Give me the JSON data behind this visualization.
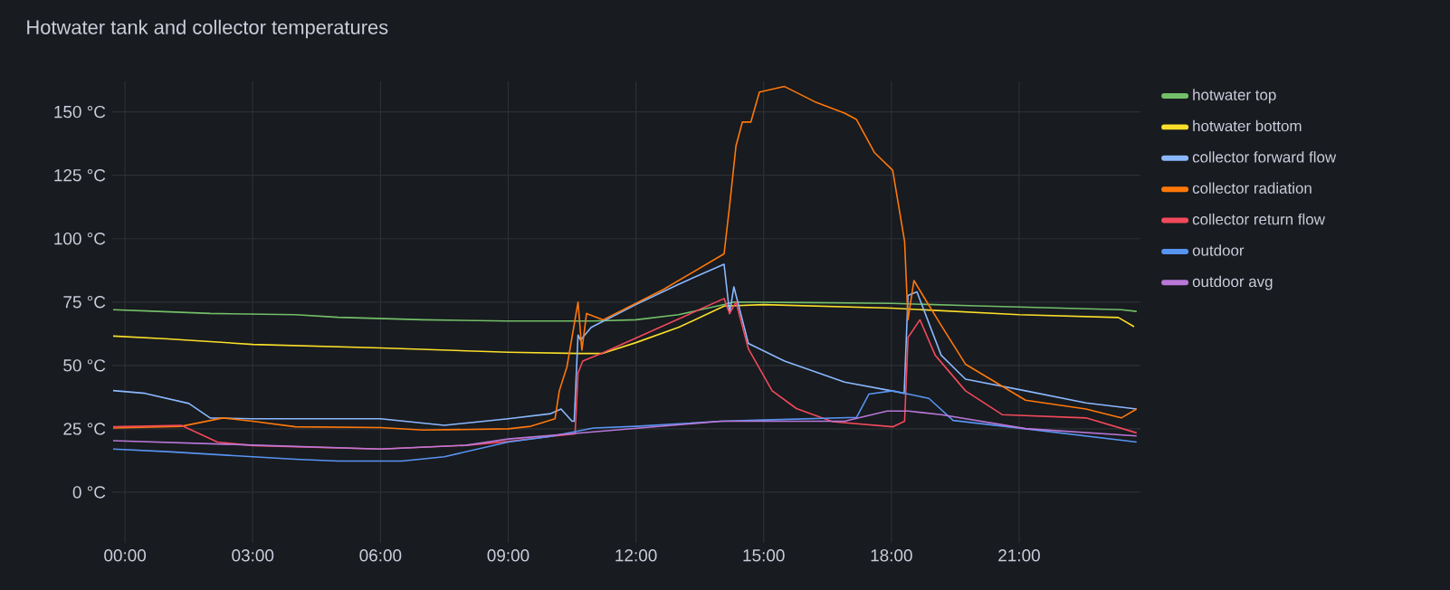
{
  "chart_data": {
    "type": "line",
    "title": "Hotwater tank and collector temperatures",
    "xlim": [
      -0.3,
      23.85
    ],
    "ylim": [
      -20,
      162
    ],
    "xticks": [
      {
        "value": 0,
        "label": "00:00"
      },
      {
        "value": 3,
        "label": "03:00"
      },
      {
        "value": 6,
        "label": "06:00"
      },
      {
        "value": 9,
        "label": "09:00"
      },
      {
        "value": 12,
        "label": "12:00"
      },
      {
        "value": 15,
        "label": "15:00"
      },
      {
        "value": 18,
        "label": "18:00"
      },
      {
        "value": 21,
        "label": "21:00"
      }
    ],
    "yticks": [
      {
        "value": 0,
        "label": "0 °C"
      },
      {
        "value": 25,
        "label": "25 °C"
      },
      {
        "value": 50,
        "label": "50 °C"
      },
      {
        "value": 75,
        "label": "75 °C"
      },
      {
        "value": 100,
        "label": "100 °C"
      },
      {
        "value": 125,
        "label": "125 °C"
      },
      {
        "value": 150,
        "label": "150 °C"
      }
    ],
    "grid": true,
    "legend": "right",
    "series": [
      {
        "name": "hotwater top",
        "color": "#73bf69",
        "x": [
          -0.28,
          0.5,
          2,
          4,
          5,
          7,
          9,
          11,
          12,
          13,
          14.07,
          14.3,
          16,
          18,
          20,
          23.4,
          23.76
        ],
        "values": [
          72,
          71.5,
          70.5,
          70,
          69,
          68,
          67.5,
          67.5,
          68,
          70,
          74,
          75,
          74.8,
          74.5,
          73.5,
          72,
          71.3
        ]
      },
      {
        "name": "hotwater bottom",
        "color": "#fade2a",
        "x": [
          -0.28,
          1,
          3,
          6,
          9,
          10.67,
          11.2,
          12,
          13,
          14.07,
          15,
          18,
          21,
          23.33,
          23.7
        ],
        "values": [
          61.6,
          60.5,
          58.3,
          56.9,
          55.2,
          54.7,
          54.7,
          59,
          65,
          73.4,
          74,
          72.6,
          70,
          68.9,
          65.3
        ]
      },
      {
        "name": "collector forward flow",
        "color": "#8ab8ff",
        "x": [
          -0.28,
          0.47,
          1.5,
          2,
          3,
          6,
          7.5,
          9,
          10,
          10.24,
          10.5,
          10.55,
          10.64,
          10.7,
          10.95,
          12,
          13,
          14.07,
          14.2,
          14.3,
          14.64,
          15.49,
          16.9,
          18.03,
          18.3,
          18.39,
          18.6,
          19.17,
          19.74,
          21.15,
          22.57,
          23.76
        ],
        "values": [
          40.1,
          39,
          35,
          29.3,
          29,
          29,
          26.4,
          29,
          31,
          32.8,
          28,
          28,
          62,
          60,
          65,
          74,
          82,
          89.9,
          70.5,
          81,
          58.7,
          51.7,
          43.4,
          39.9,
          39,
          77.6,
          79,
          54,
          44.6,
          40,
          35.2,
          32.8
        ]
      },
      {
        "name": "collector radiation",
        "color": "#ff780a",
        "x": [
          -0.28,
          1.32,
          2.3,
          3,
          4,
          6,
          7,
          9,
          9.53,
          10.1,
          10.2,
          10.38,
          10.64,
          10.73,
          10.84,
          11.23,
          12.65,
          14.07,
          14.2,
          14.35,
          14.5,
          14.7,
          14.9,
          15.49,
          16.2,
          16.9,
          17.18,
          17.6,
          18.03,
          18.17,
          18.31,
          18.39,
          18.53,
          18.74,
          19.17,
          19.74,
          21.15,
          22.57,
          23.4,
          23.76
        ],
        "values": [
          25.3,
          26,
          29.3,
          28,
          25.8,
          25.5,
          24.5,
          25,
          26,
          29,
          40,
          49.5,
          75,
          56,
          70.5,
          68,
          80,
          94,
          113,
          136.6,
          146,
          146,
          157.8,
          160,
          154,
          149.5,
          147,
          134,
          127,
          113,
          98.9,
          68,
          83.5,
          77.6,
          65.8,
          50.5,
          36.3,
          32.8,
          29.3,
          32.8
        ]
      },
      {
        "name": "collector return flow",
        "color": "#f2495c",
        "x": [
          -0.28,
          1.32,
          2.17,
          3,
          6,
          8,
          9,
          10,
          10.57,
          10.64,
          10.75,
          11.23,
          14.07,
          14.2,
          14.35,
          14.64,
          15.2,
          15.77,
          16.62,
          18.03,
          18.31,
          18.39,
          18.67,
          19.03,
          19.74,
          20.6,
          22.57,
          23.76
        ],
        "values": [
          25.8,
          26.4,
          19.8,
          18.4,
          17,
          18.5,
          20,
          22,
          23,
          47,
          51.7,
          55,
          76.4,
          70.5,
          75,
          56.6,
          40,
          33,
          27.8,
          25.8,
          28,
          61,
          68,
          54,
          40,
          30.6,
          29.3,
          23.4
        ]
      },
      {
        "name": "outdoor",
        "color": "#5794f2",
        "x": [
          -0.28,
          1,
          2,
          3,
          4,
          5,
          6.5,
          7.5,
          9,
          10,
          11,
          12,
          14,
          15,
          17.18,
          17.47,
          18.03,
          18.88,
          19.45,
          21.15,
          23.76
        ],
        "values": [
          17,
          16,
          15,
          14,
          13,
          12.3,
          12.3,
          14,
          19.8,
          22,
          25.3,
          26,
          28,
          28.5,
          29.5,
          38.7,
          40,
          37,
          28.3,
          25,
          19.8
        ]
      },
      {
        "name": "outdoor avg",
        "color": "#b877d9",
        "x": [
          -0.28,
          3,
          6,
          8,
          9,
          11,
          14,
          16.9,
          17.9,
          18.4,
          19.17,
          21.15,
          23.76
        ],
        "values": [
          20.3,
          18.6,
          17,
          18.5,
          21,
          23.8,
          28,
          28,
          32,
          32,
          30.6,
          25.1,
          22.2
        ]
      }
    ]
  }
}
